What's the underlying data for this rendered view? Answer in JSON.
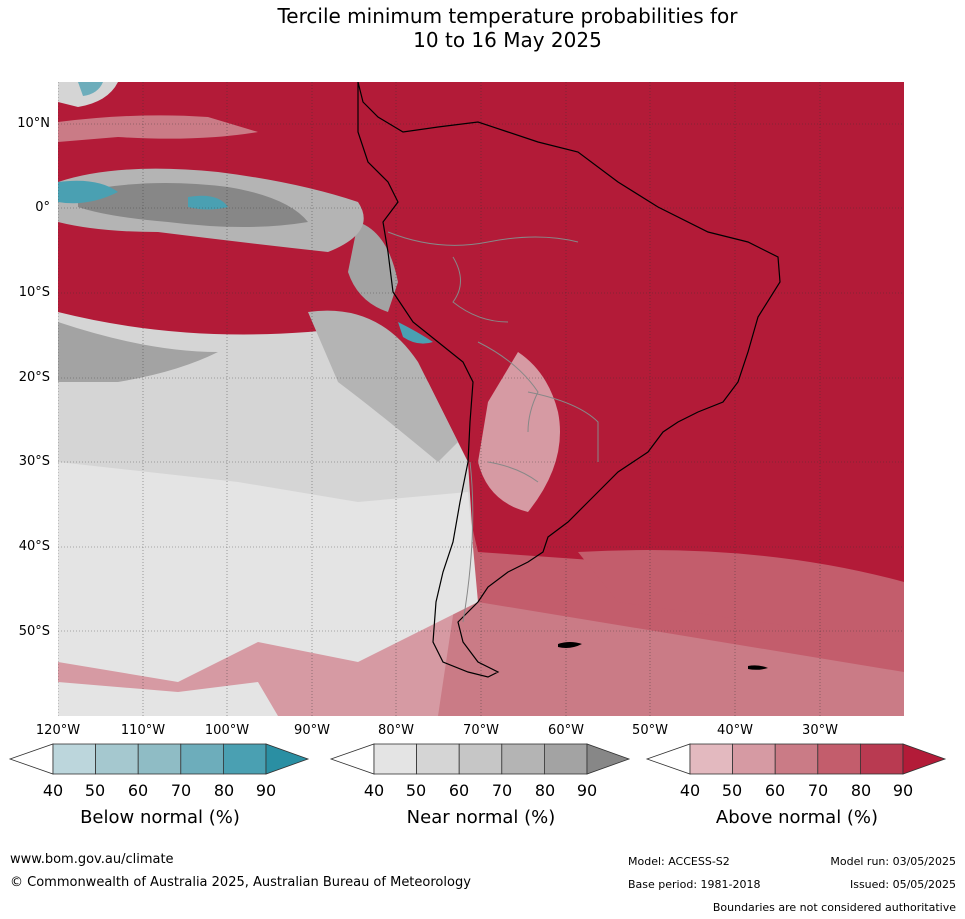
{
  "title": {
    "line1": "Tercile minimum temperature probabilities for",
    "line2": "10 to 16 May 2025"
  },
  "map": {
    "lat_labels": [
      "10°N",
      "0°",
      "10°S",
      "20°S",
      "30°S",
      "40°S",
      "50°S"
    ],
    "lon_labels": [
      "120°W",
      "110°W",
      "100°W",
      "90°W",
      "80°W",
      "70°W",
      "60°W",
      "50°W",
      "40°W",
      "30°W"
    ]
  },
  "legends": [
    {
      "title": "Below normal (%)",
      "ticks": [
        "40",
        "50",
        "60",
        "70",
        "80",
        "90"
      ],
      "colors": [
        "#ffffff",
        "#bcd6dc",
        "#a5c8cf",
        "#8fbcc5",
        "#6dadbb",
        "#4aa0b2",
        "#2a8fa3"
      ]
    },
    {
      "title": "Near normal (%)",
      "ticks": [
        "40",
        "50",
        "60",
        "70",
        "80",
        "90"
      ],
      "colors": [
        "#ffffff",
        "#e4e4e4",
        "#d5d5d5",
        "#c6c6c6",
        "#b4b4b4",
        "#a3a3a3",
        "#878787"
      ]
    },
    {
      "title": "Above normal (%)",
      "ticks": [
        "40",
        "50",
        "60",
        "70",
        "80",
        "90"
      ],
      "colors": [
        "#ffffff",
        "#e3b9bf",
        "#d69aa3",
        "#ca7b86",
        "#c35d6c",
        "#b93a51",
        "#b31b38"
      ]
    }
  ],
  "footer": {
    "website": "www.bom.gov.au/climate",
    "copyright": "© Commonwealth of Australia 2025, Australian Bureau of Meteorology",
    "model": "Model: ACCESS-S2",
    "model_run": "Model run: 03/05/2025",
    "base_period": "Base period: 1981-2018",
    "issued": "Issued: 05/05/2025",
    "disclaimer": "Boundaries are not considered authoritative"
  }
}
